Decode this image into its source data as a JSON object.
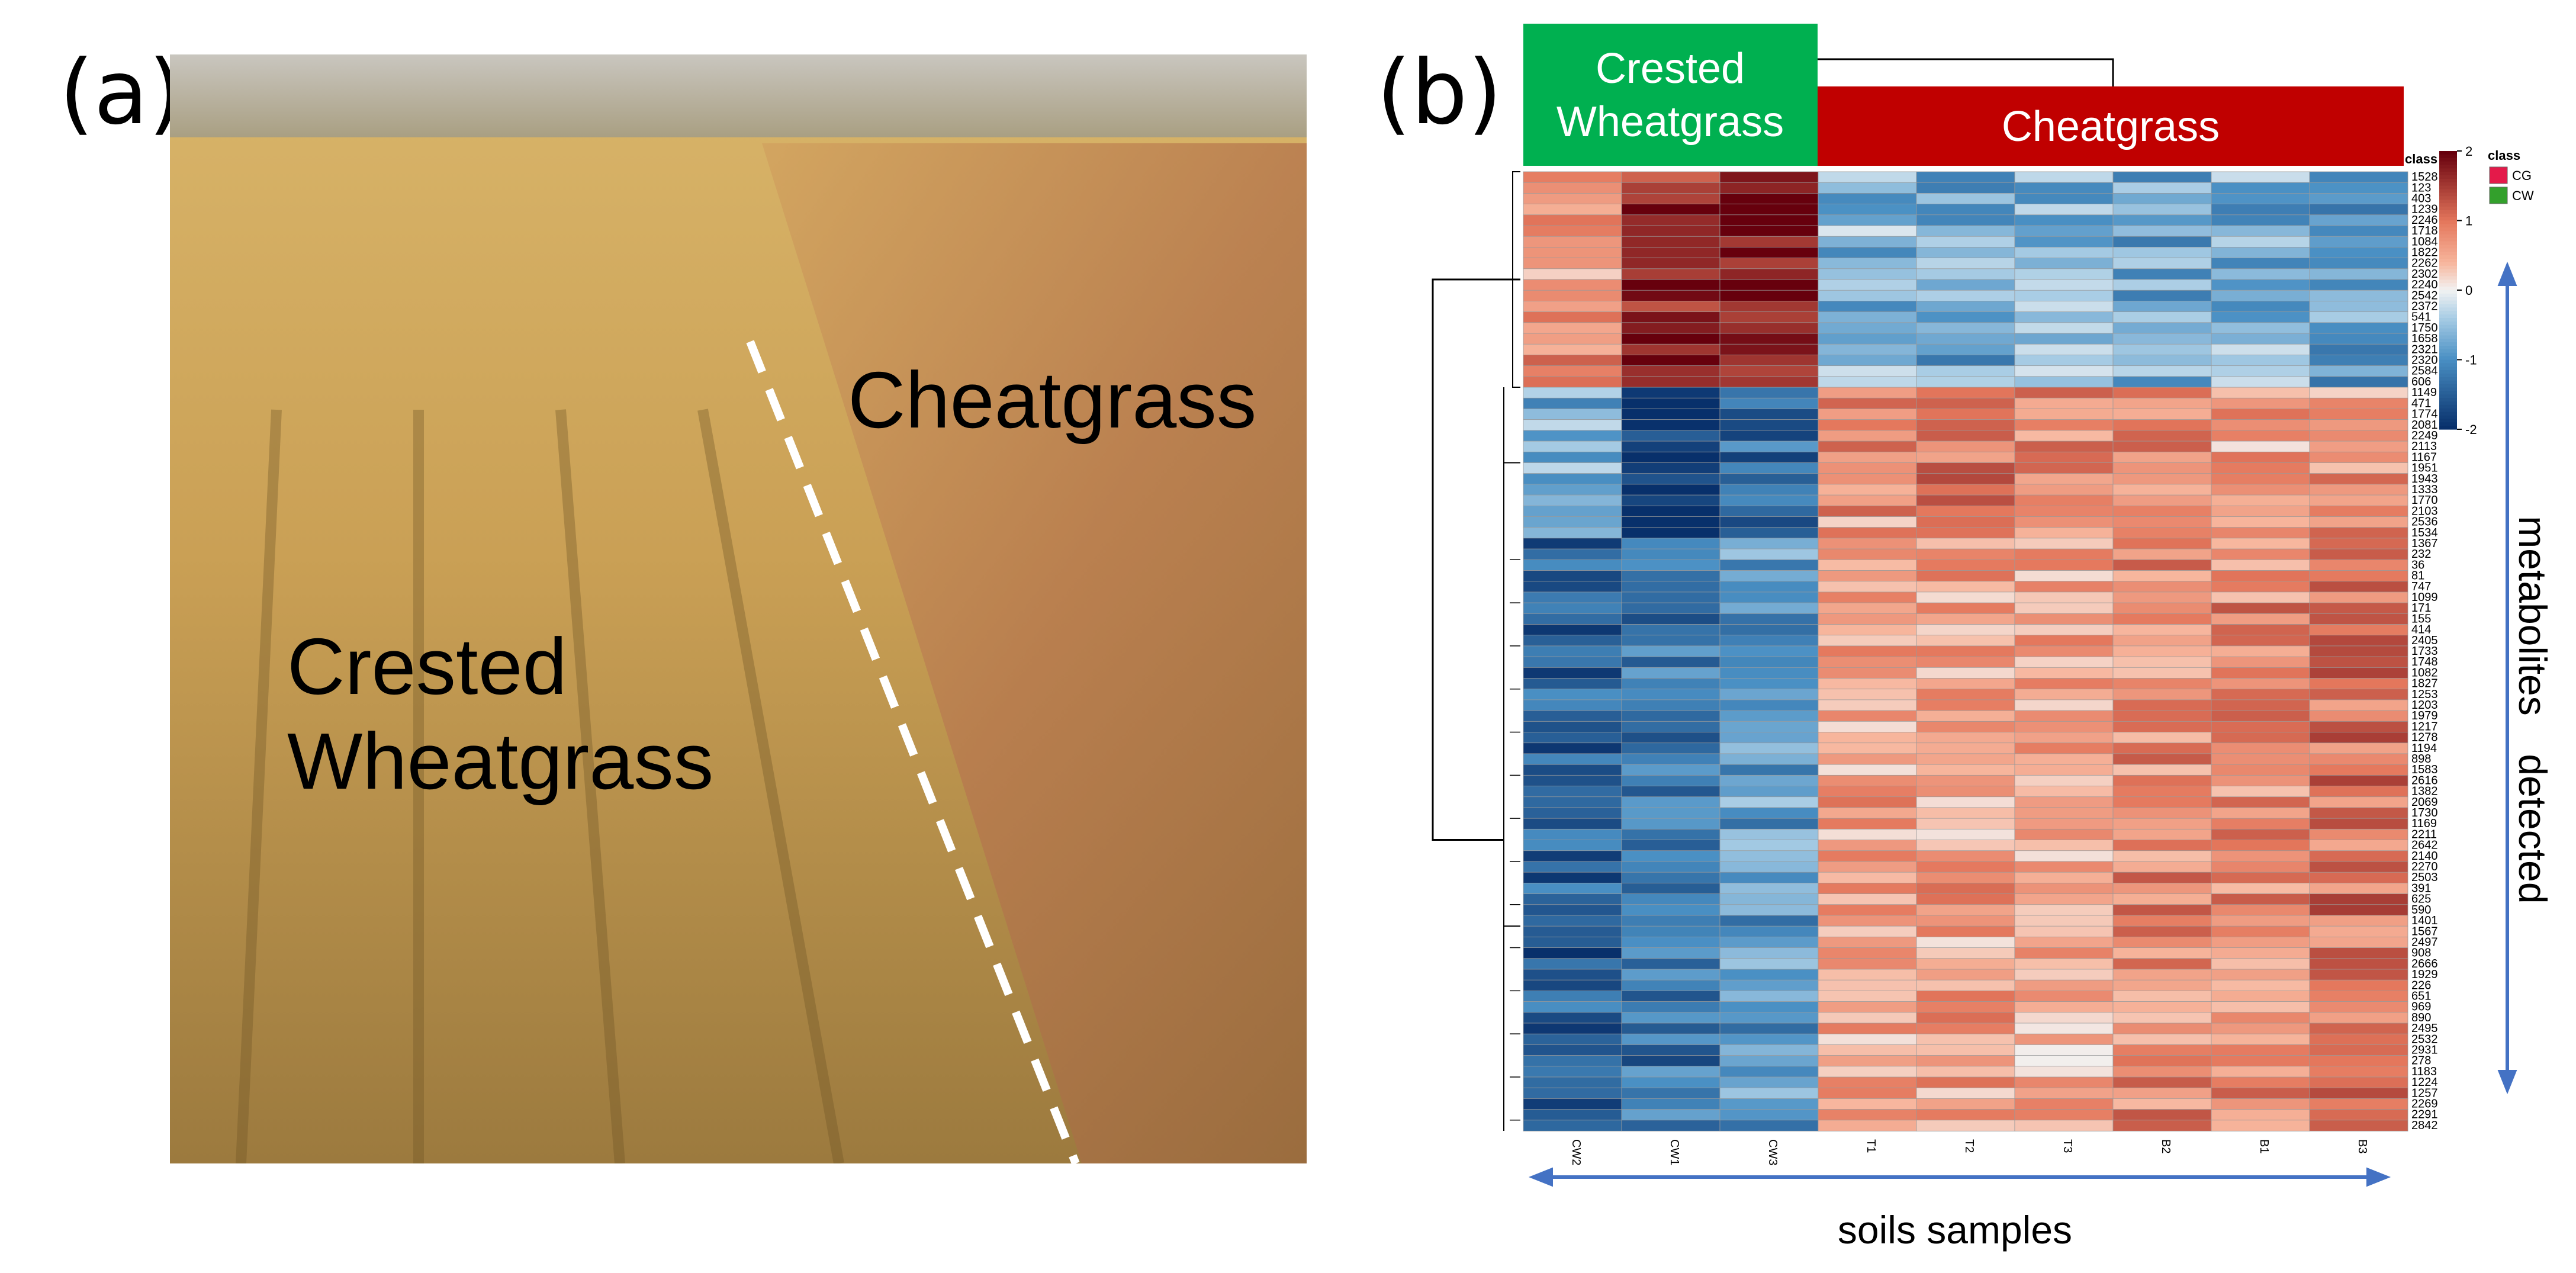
{
  "panels": {
    "a": "(a)",
    "b": "(b)"
  },
  "photo": {
    "labels": {
      "cheatgrass": "Cheatgrass",
      "crested_line1": "Crested",
      "crested_line2": "Wheatgrass"
    },
    "colors": {
      "sky": "#bcb9b0",
      "field_light": "#d8b261",
      "field_dark": "#8e6a2c",
      "cheat_red": "#b0704a",
      "dash": "#ffffff"
    }
  },
  "heatmap": {
    "headers": {
      "crested_line1": "Crested",
      "crested_line2": "Wheatgrass",
      "cheatgrass": "Cheatgrass"
    },
    "header_colors": {
      "crested": "#00b050",
      "cheatgrass": "#c00000"
    },
    "legend": {
      "title": "class",
      "ticks": [
        "2",
        "1",
        "0",
        "-1",
        "-2"
      ],
      "class_title": "class",
      "classes": [
        {
          "name": "CG",
          "color": "#e41a4a"
        },
        {
          "name": "CW",
          "color": "#33a02c"
        }
      ]
    },
    "annotation_label": "class",
    "y_label_line1": "metabolites",
    "y_label_line2": "detected",
    "x_axis_label": "soils samples",
    "colorscale": {
      "low": "#08306b",
      "mid": "#f2f2f2",
      "high": "#67000d"
    }
  },
  "chart_data": {
    "type": "heatmap",
    "columns": [
      "CW2",
      "CW1",
      "CW3",
      "T1",
      "T2",
      "T3",
      "B2",
      "B1",
      "B3"
    ],
    "column_classes": [
      "CW",
      "CW",
      "CW",
      "CG",
      "CG",
      "CG",
      "CG",
      "CG",
      "CG"
    ],
    "rows": [
      "1528",
      "123",
      "403",
      "1239",
      "2246",
      "1718",
      "1084",
      "1822",
      "2262",
      "2302",
      "2240",
      "2542",
      "2372",
      "541",
      "1750",
      "1658",
      "2321",
      "2320",
      "2584",
      "606",
      "1149",
      "471",
      "1774",
      "2081",
      "2249",
      "2113",
      "1167",
      "1951",
      "1943",
      "1333",
      "1770",
      "2103",
      "2536",
      "1534",
      "1367",
      "232",
      "36",
      "81",
      "747",
      "1099",
      "171",
      "155",
      "414",
      "2405",
      "1733",
      "1748",
      "1082",
      "1827",
      "1253",
      "1203",
      "1979",
      "1217",
      "1278",
      "1194",
      "898",
      "1583",
      "2616",
      "1382",
      "2069",
      "1730",
      "1169",
      "2211",
      "2642",
      "2140",
      "2270",
      "2503",
      "391",
      "625",
      "590",
      "1401",
      "1567",
      "2497",
      "908",
      "2666",
      "1929",
      "226",
      "651",
      "969",
      "890",
      "2495",
      "2532",
      "2931",
      "278",
      "1183",
      "1224",
      "1257",
      "2269",
      "2291",
      "2842"
    ],
    "value_range": [
      -2,
      2
    ],
    "row_group_means": [
      {
        "rows": "1528–2584",
        "values": [
          0.7,
          1.6,
          1.9,
          -0.6,
          -0.8,
          -0.6,
          -0.8,
          -0.7,
          -0.9
        ]
      },
      {
        "rows": "606–1367",
        "values": [
          -0.7,
          -1.9,
          -1.4,
          0.7,
          0.9,
          0.8,
          0.9,
          0.6,
          0.7
        ]
      },
      {
        "rows": "232–2842",
        "values": [
          -1.5,
          -1.3,
          -0.9,
          0.6,
          0.6,
          0.5,
          0.8,
          0.8,
          1.0
        ]
      }
    ]
  }
}
